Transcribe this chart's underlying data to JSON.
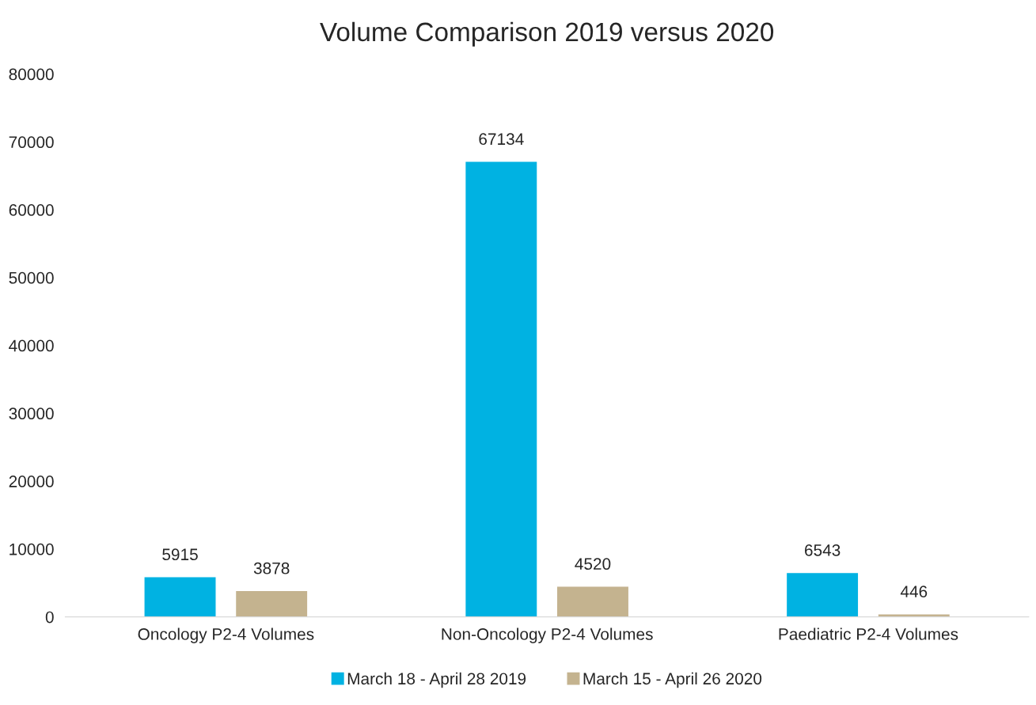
{
  "chart_data": {
    "type": "bar",
    "title": "Volume Comparison 2019 versus 2020",
    "categories": [
      "Oncology P2-4 Volumes",
      "Non-Oncology P2-4 Volumes",
      "Paediatric P2-4 Volumes"
    ],
    "series": [
      {
        "name": "March 18 - April 28 2019",
        "color": "#00b2e2",
        "values": [
          5915,
          67134,
          6543
        ]
      },
      {
        "name": "March 15 - April 26 2020",
        "color": "#c4b38f",
        "values": [
          3878,
          4520,
          446
        ]
      }
    ],
    "ylim": [
      0,
      80000
    ],
    "yticks": [
      0,
      10000,
      20000,
      30000,
      40000,
      50000,
      60000,
      70000,
      80000
    ],
    "data_labels": true,
    "grid": false,
    "legend": "bottom"
  }
}
